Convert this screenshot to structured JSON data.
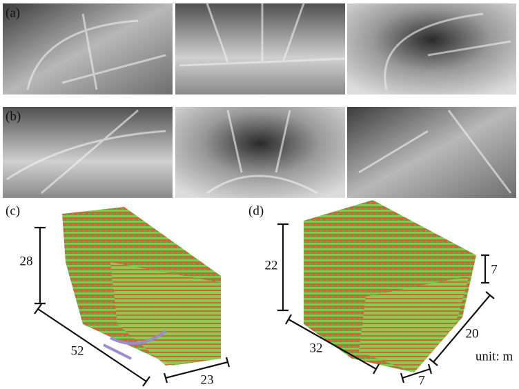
{
  "panels": {
    "a": {
      "label": "(a)"
    },
    "b": {
      "label": "(b)"
    },
    "c": {
      "label": "(c)",
      "height": "28",
      "length": "52",
      "width": "23"
    },
    "d": {
      "label": "(d)",
      "height": "22",
      "step_height": "7",
      "length": "32",
      "width": "20",
      "step_width": "7"
    }
  },
  "unit": "unit: m"
}
